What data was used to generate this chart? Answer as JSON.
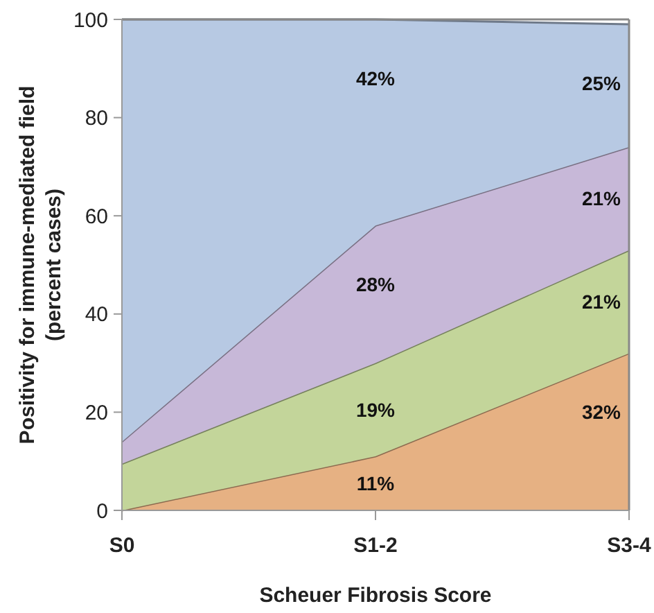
{
  "chart_data": {
    "type": "area",
    "stacked": true,
    "xlabel": "Scheuer Fibrosis Score",
    "ylabel": "Positivity for immune-mediated field (percent cases)",
    "categories": [
      "S0",
      "S1-2",
      "S3-4"
    ],
    "ylim": [
      0,
      100
    ],
    "yticks": [
      0,
      20,
      40,
      60,
      80,
      100
    ],
    "series": [
      {
        "color": "#e6b183",
        "values": [
          0,
          11,
          32
        ],
        "value_labels": [
          null,
          "11%",
          "32%"
        ]
      },
      {
        "color": "#c3d59a",
        "values": [
          9.5,
          19,
          21
        ],
        "value_labels": [
          null,
          "19%",
          "21%"
        ]
      },
      {
        "color": "#c7b8d8",
        "values": [
          4.5,
          28,
          21
        ],
        "value_labels": [
          null,
          "28%",
          "21%"
        ]
      },
      {
        "color": "#b7c9e3",
        "values": [
          86,
          42,
          25
        ],
        "value_labels": [
          null,
          "42%",
          "25%"
        ]
      }
    ]
  }
}
